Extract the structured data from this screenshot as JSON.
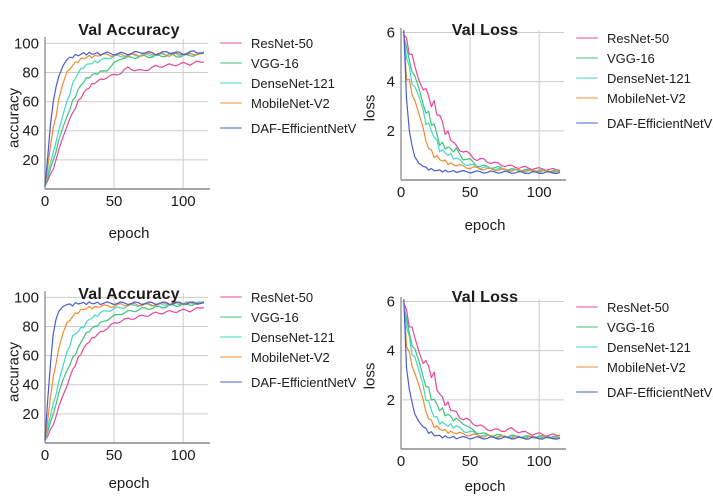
{
  "page": {
    "background": "#ffffff"
  },
  "palette": {
    "grid": "#cccccc",
    "axis": "#8a8a8a",
    "text": "#1c1c1e",
    "legend_swatch_opacity": 0.5,
    "resnet50": "#e8479b",
    "vgg16": "#41c178",
    "densenet121": "#45d8c5",
    "mobilenetv2": "#f08c2e",
    "daf_efficientnetv2": "#4a5cd0"
  },
  "chart_data": [
    {
      "type": "line",
      "title": "Val Accuracy",
      "xlabel": "epoch",
      "ylabel": "accuracy",
      "xlim": [
        0,
        118
      ],
      "ylim": [
        0,
        103
      ],
      "xticks": [
        0,
        50,
        100
      ],
      "yticks": [
        20,
        40,
        60,
        80,
        100
      ],
      "grid": true,
      "legend_position": "right",
      "noise": 0.7,
      "noise_prop": false,
      "x": [
        0,
        2,
        4,
        6,
        8,
        10,
        13,
        16,
        20,
        24,
        28,
        32,
        36,
        40,
        45,
        50,
        55,
        60,
        70,
        80,
        90,
        100,
        105,
        110,
        115
      ],
      "series": [
        {
          "name": "ResNet-50",
          "color": "#e8479b",
          "values": [
            2,
            6,
            10,
            14,
            20,
            27,
            36,
            44,
            52,
            60,
            66,
            70,
            73,
            75,
            77,
            78,
            80,
            83,
            81,
            84,
            85,
            86,
            86,
            87,
            87
          ]
        },
        {
          "name": "VGG-16",
          "color": "#41c178",
          "values": [
            2,
            8,
            14,
            20,
            26,
            33,
            42,
            50,
            60,
            68,
            74,
            77,
            79,
            80,
            82,
            86,
            90,
            90,
            91,
            91,
            92,
            91,
            92,
            92,
            93
          ]
        },
        {
          "name": "DenseNet-121",
          "color": "#45d8c5",
          "values": [
            2,
            10,
            18,
            25,
            33,
            40,
            50,
            60,
            72,
            80,
            84,
            86,
            87,
            88,
            90,
            91,
            91,
            92,
            92,
            92,
            93,
            92,
            93,
            93,
            93
          ]
        },
        {
          "name": "MobileNet-V2",
          "color": "#f08c2e",
          "values": [
            2,
            15,
            30,
            42,
            50,
            62,
            72,
            80,
            85,
            88,
            90,
            91,
            91,
            92,
            92,
            92,
            92,
            92,
            92,
            93,
            92,
            93,
            92,
            93,
            93
          ]
        },
        {
          "name": "DAF-EfficientNetV2",
          "color": "#4a5cd0",
          "values": [
            2,
            22,
            45,
            60,
            70,
            78,
            85,
            89,
            91,
            92,
            93,
            93,
            93,
            93,
            93,
            93,
            93,
            93,
            94,
            93,
            94,
            93,
            94,
            94,
            94
          ]
        }
      ]
    },
    {
      "type": "line",
      "title": "Val Loss",
      "xlabel": "epoch",
      "ylabel": "loss",
      "xlim": [
        0,
        118
      ],
      "ylim": [
        0,
        6.1
      ],
      "xticks": [
        0,
        50,
        100
      ],
      "yticks": [
        2,
        4,
        6
      ],
      "grid": true,
      "legend_position": "right",
      "noise": 0.05,
      "noise_prop": true,
      "x": [
        2,
        4,
        6,
        8,
        10,
        13,
        16,
        20,
        24,
        28,
        32,
        36,
        40,
        45,
        50,
        55,
        60,
        70,
        80,
        90,
        100,
        105,
        110,
        115
      ],
      "series": [
        {
          "name": "ResNet-50",
          "color": "#e8479b",
          "values": [
            6.0,
            5.6,
            5.3,
            5.0,
            4.6,
            4.15,
            3.9,
            3.35,
            3.0,
            2.6,
            2.0,
            1.7,
            1.35,
            1.2,
            1.0,
            0.85,
            0.8,
            0.65,
            0.55,
            0.5,
            0.45,
            0.45,
            0.42,
            0.4
          ]
        },
        {
          "name": "VGG-16",
          "color": "#41c178",
          "values": [
            6.0,
            5.3,
            4.9,
            4.5,
            4.05,
            3.6,
            3.1,
            2.6,
            2.2,
            1.5,
            1.35,
            1.25,
            1.2,
            0.9,
            0.8,
            0.6,
            0.55,
            0.5,
            0.42,
            0.4,
            0.38,
            0.37,
            0.36,
            0.35
          ]
        },
        {
          "name": "DenseNet-121",
          "color": "#45d8c5",
          "values": [
            6.0,
            5.0,
            4.5,
            4.05,
            3.65,
            3.2,
            2.7,
            2.2,
            1.8,
            1.25,
            1.1,
            1.0,
            0.85,
            0.7,
            0.6,
            0.55,
            0.5,
            0.45,
            0.4,
            0.38,
            0.36,
            0.36,
            0.35,
            0.35
          ]
        },
        {
          "name": "MobileNet-V2",
          "color": "#f08c2e",
          "values": [
            6.0,
            4.2,
            3.95,
            3.55,
            3.25,
            2.6,
            2.0,
            1.3,
            1.0,
            0.85,
            0.75,
            0.65,
            0.6,
            0.55,
            0.5,
            0.48,
            0.45,
            0.42,
            0.4,
            0.38,
            0.36,
            0.35,
            0.35,
            0.34
          ]
        },
        {
          "name": "DAF-EfficientNetV2",
          "color": "#4a5cd0",
          "values": [
            6.0,
            3.4,
            2.0,
            1.35,
            1.0,
            0.7,
            0.55,
            0.45,
            0.4,
            0.38,
            0.36,
            0.35,
            0.35,
            0.34,
            0.33,
            0.33,
            0.32,
            0.32,
            0.31,
            0.3,
            0.3,
            0.3,
            0.3,
            0.3
          ]
        }
      ]
    },
    {
      "type": "line",
      "title": "Val Accuracy",
      "xlabel": "epoch",
      "ylabel": "accuracy",
      "xlim": [
        0,
        118
      ],
      "ylim": [
        0,
        103
      ],
      "xticks": [
        0,
        50,
        100
      ],
      "yticks": [
        20,
        40,
        60,
        80,
        100
      ],
      "grid": true,
      "legend_position": "right",
      "noise": 0.7,
      "noise_prop": false,
      "x": [
        0,
        2,
        4,
        6,
        8,
        10,
        13,
        16,
        20,
        24,
        28,
        32,
        36,
        40,
        45,
        50,
        55,
        60,
        70,
        80,
        90,
        100,
        105,
        110,
        115
      ],
      "series": [
        {
          "name": "ResNet-50",
          "color": "#e8479b",
          "values": [
            2,
            5,
            9,
            13,
            18,
            25,
            33,
            40,
            50,
            58,
            65,
            70,
            73,
            76,
            79,
            82,
            84,
            85,
            87,
            89,
            90,
            91,
            91,
            92,
            93
          ]
        },
        {
          "name": "VGG-16",
          "color": "#41c178",
          "values": [
            2,
            8,
            14,
            20,
            27,
            34,
            43,
            50,
            58,
            65,
            73,
            77,
            80,
            82,
            85,
            87,
            89,
            90,
            92,
            93,
            94,
            95,
            95,
            96,
            96
          ]
        },
        {
          "name": "DenseNet-121",
          "color": "#45d8c5",
          "values": [
            2,
            11,
            19,
            27,
            34,
            42,
            52,
            62,
            73,
            77,
            80,
            85,
            87,
            89,
            91,
            92,
            93,
            94,
            95,
            95,
            95,
            96,
            96,
            96,
            96
          ]
        },
        {
          "name": "MobileNet-V2",
          "color": "#f08c2e",
          "values": [
            2,
            16,
            32,
            45,
            55,
            65,
            75,
            82,
            87,
            90,
            92,
            93,
            93,
            94,
            94,
            94,
            95,
            95,
            95,
            95,
            96,
            96,
            96,
            96,
            96
          ]
        },
        {
          "name": "DAF-EfficientNetV2",
          "color": "#4a5cd0",
          "values": [
            2,
            30,
            55,
            75,
            85,
            91,
            94,
            95,
            95,
            96,
            96,
            96,
            96,
            96,
            96,
            96,
            96,
            96,
            96,
            96,
            96,
            96,
            96,
            96,
            97
          ]
        }
      ]
    },
    {
      "type": "line",
      "title": "Val Loss",
      "xlabel": "epoch",
      "ylabel": "loss",
      "xlim": [
        0,
        118
      ],
      "ylim": [
        0,
        6.1
      ],
      "xticks": [
        0,
        50,
        100
      ],
      "yticks": [
        2,
        4,
        6
      ],
      "grid": true,
      "legend_position": "right",
      "noise": 0.05,
      "noise_prop": true,
      "x": [
        2,
        4,
        6,
        8,
        10,
        13,
        16,
        20,
        24,
        28,
        32,
        36,
        40,
        45,
        50,
        55,
        60,
        70,
        80,
        90,
        100,
        105,
        110,
        115
      ],
      "series": [
        {
          "name": "ResNet-50",
          "color": "#e8479b",
          "values": [
            6.0,
            5.5,
            5.15,
            4.85,
            4.5,
            4.05,
            3.7,
            3.3,
            2.9,
            2.2,
            1.9,
            1.65,
            1.45,
            1.25,
            1.1,
            1.0,
            0.85,
            0.75,
            0.8,
            0.65,
            0.6,
            0.58,
            0.56,
            0.55
          ]
        },
        {
          "name": "VGG-16",
          "color": "#41c178",
          "values": [
            6.0,
            5.2,
            4.75,
            4.3,
            3.9,
            3.45,
            2.95,
            2.35,
            1.95,
            1.65,
            1.45,
            1.3,
            1.15,
            1.1,
            0.8,
            0.7,
            0.6,
            0.55,
            0.52,
            0.5,
            0.5,
            0.49,
            0.48,
            0.47
          ]
        },
        {
          "name": "DenseNet-121",
          "color": "#45d8c5",
          "values": [
            6.0,
            5.0,
            4.45,
            4.0,
            3.6,
            3.0,
            2.45,
            1.85,
            1.35,
            1.1,
            1.0,
            0.95,
            0.9,
            0.75,
            0.7,
            0.6,
            0.55,
            0.5,
            0.5,
            0.48,
            0.48,
            0.47,
            0.47,
            0.46
          ]
        },
        {
          "name": "MobileNet-V2",
          "color": "#f08c2e",
          "values": [
            6.0,
            4.3,
            3.8,
            3.45,
            3.1,
            2.5,
            1.9,
            1.25,
            0.95,
            0.82,
            0.74,
            0.68,
            0.65,
            0.6,
            0.58,
            0.55,
            0.52,
            0.5,
            0.48,
            0.47,
            0.47,
            0.46,
            0.46,
            0.46
          ]
        },
        {
          "name": "DAF-EfficientNetV2",
          "color": "#4a5cd0",
          "values": [
            6.0,
            3.4,
            2.4,
            1.85,
            1.5,
            1.15,
            0.9,
            0.7,
            0.58,
            0.52,
            0.49,
            0.47,
            0.47,
            0.46,
            0.46,
            0.45,
            0.45,
            0.45,
            0.45,
            0.44,
            0.45,
            0.44,
            0.45,
            0.44
          ]
        }
      ]
    }
  ]
}
